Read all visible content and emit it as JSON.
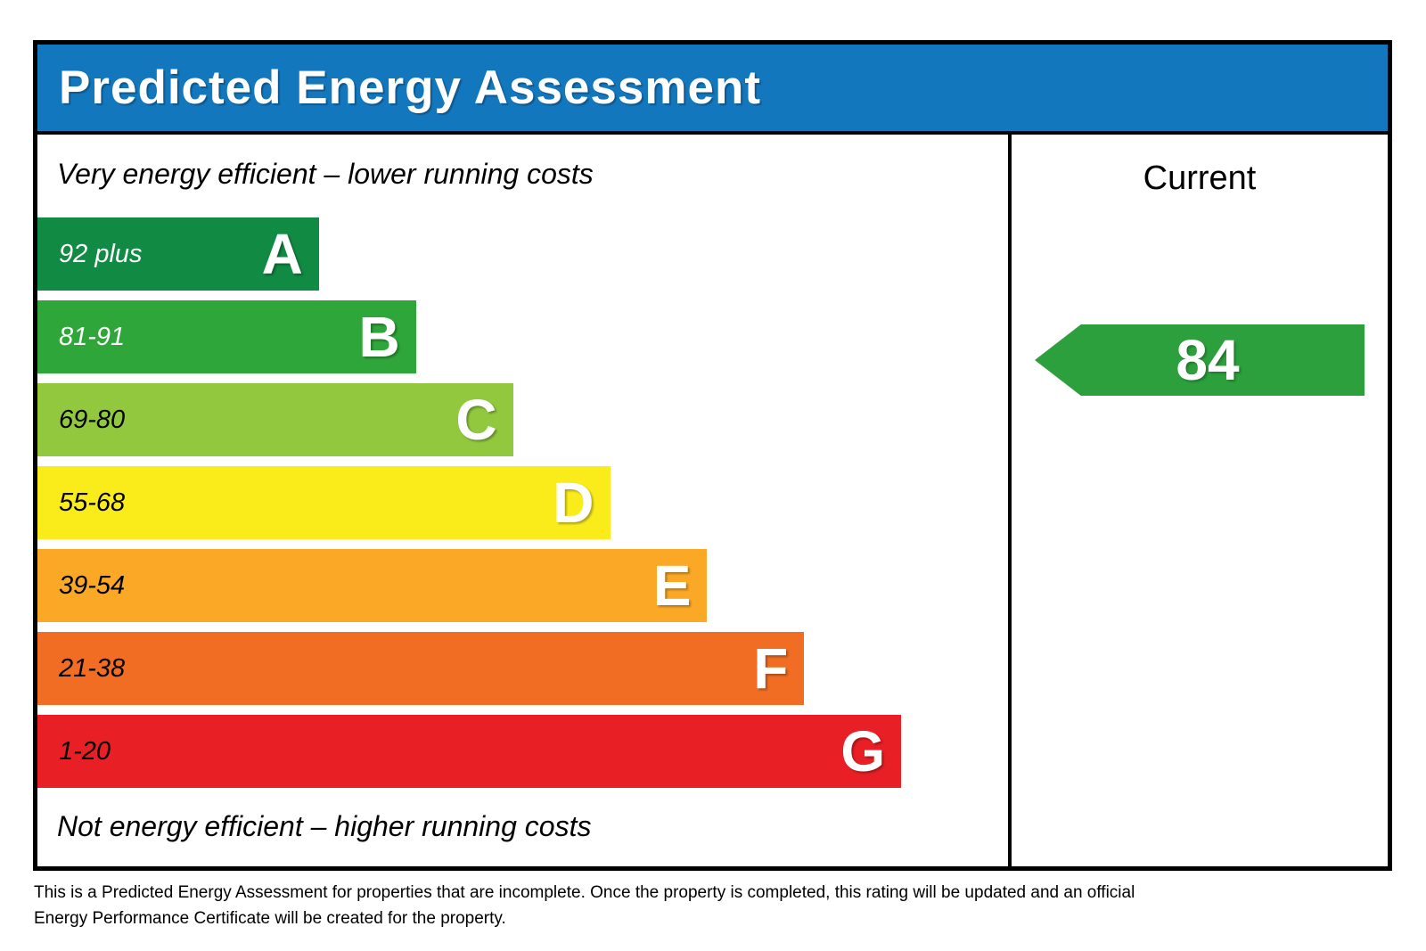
{
  "header": {
    "title": "Predicted Energy Assessment",
    "bg_color": "#1377bd"
  },
  "chart_data": {
    "type": "bar",
    "title": "Predicted Energy Assessment",
    "top_caption": "Very energy efficient – lower running costs",
    "bottom_caption": "Not energy efficient – higher running costs",
    "legend_position": "none",
    "grid": false,
    "bands": [
      {
        "grade": "A",
        "range": "92 plus",
        "range_numeric": [
          92,
          100
        ],
        "color": "#118a44",
        "text_color": "#ffffff",
        "width": "29%"
      },
      {
        "grade": "B",
        "range": "81-91",
        "range_numeric": [
          81,
          91
        ],
        "color": "#2fa63a",
        "text_color": "#ffffff",
        "width": "39%"
      },
      {
        "grade": "C",
        "range": "69-80",
        "range_numeric": [
          69,
          80
        ],
        "color": "#92c83e",
        "text_color": "#000000",
        "width": "49%"
      },
      {
        "grade": "D",
        "range": "55-68",
        "range_numeric": [
          55,
          68
        ],
        "color": "#faec1b",
        "text_color": "#000000",
        "width": "59%"
      },
      {
        "grade": "E",
        "range": "39-54",
        "range_numeric": [
          39,
          54
        ],
        "color": "#faa826",
        "text_color": "#000000",
        "width": "69%"
      },
      {
        "grade": "F",
        "range": "21-38",
        "range_numeric": [
          21,
          38
        ],
        "color": "#f06d23",
        "text_color": "#000000",
        "width": "79%"
      },
      {
        "grade": "G",
        "range": "1-20",
        "range_numeric": [
          1,
          20
        ],
        "color": "#e82026",
        "text_color": "#000000",
        "width": "89%"
      }
    ],
    "current": {
      "column_header": "Current",
      "value": "84",
      "band": "B",
      "arrow_color": "#2ca03c"
    }
  },
  "footer": {
    "text": "This is a Predicted Energy Assessment for properties that are incomplete. Once the property is completed, this rating will be updated and an official Energy Performance Certificate will be created for the property."
  }
}
